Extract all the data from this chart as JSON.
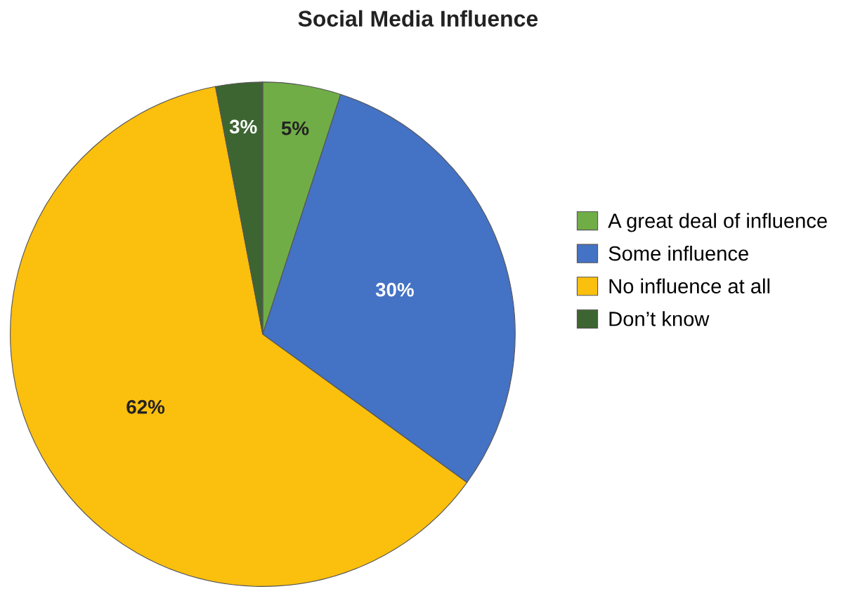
{
  "chart_data": {
    "type": "pie",
    "title": "Social Media Influence",
    "categories": [
      "A great deal of influence",
      "Some influence",
      "No influence at all",
      "Don’t know"
    ],
    "values": [
      5,
      30,
      62,
      3
    ],
    "colors": [
      "#70ad47",
      "#4472c4",
      "#fbbf0e",
      "#3d6532"
    ],
    "value_labels": [
      "5%",
      "30%",
      "62%",
      "3%"
    ],
    "legend": "right"
  }
}
